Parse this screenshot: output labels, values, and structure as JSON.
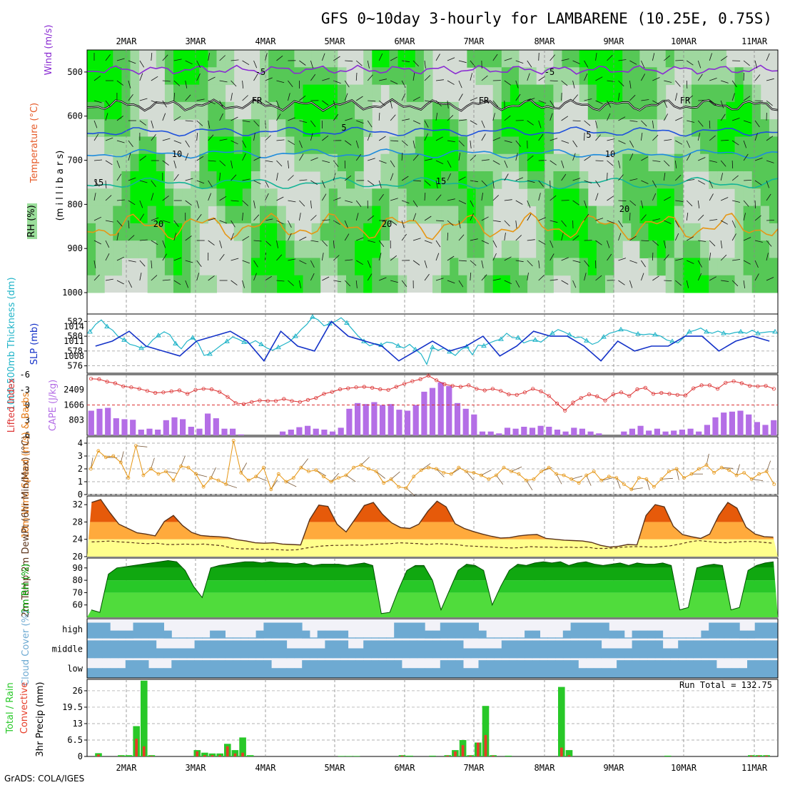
{
  "title": "GFS 0~10day 3-hourly for LAMBARENE (10.25E, 0.75S)",
  "footer": "GrADS: COLA/IGES",
  "dates": [
    "2MAR",
    "3MAR",
    "4MAR",
    "5MAR",
    "6MAR",
    "7MAR",
    "8MAR",
    "9MAR",
    "10MAR",
    "11MAR"
  ],
  "colors": {
    "rh_light": "#9fd89f",
    "rh_mid": "#56c856",
    "rh_high": "#00ee00",
    "rh_bg": "#d4dcd4",
    "slp": "#1432c8",
    "thk": "#20b4c8",
    "lift": "#dc3232",
    "cape": "#b46ee6",
    "wind": "#e69614",
    "temp_hi": "#e65a0a",
    "temp_mid": "#ffaa3c",
    "temp_lo": "#ffff8c",
    "rh2": "#00a000",
    "cloud": "#6eaad2",
    "cloud_bg": "#e6e6e6",
    "precip": "#28c828",
    "conv": "#e63c28"
  },
  "chart_data": [
    {
      "type": "heatmap",
      "panel": "vertical",
      "ylabels": [
        "Wind (m/s)",
        "Temperature (°C)",
        "RH (%)",
        "(m i l l i b a r s)"
      ],
      "yticks": [
        500,
        600,
        700,
        800,
        900,
        1000
      ],
      "ylim": [
        1000,
        450
      ],
      "contour_labels": [
        "-5",
        "FR",
        "5",
        "10",
        "15",
        "20"
      ]
    },
    {
      "type": "line",
      "panel": "slp_thickness",
      "ylabel_left": "1000-500mb Thickness (dm)",
      "ylabel_right": "SLP (mb)",
      "yticks_left": [
        576,
        578,
        580,
        582
      ],
      "yticks_right": [
        1008,
        1011,
        1014
      ],
      "series": [
        {
          "name": "SLP (mb)",
          "values": [
            1010,
            1009,
            1012,
            1011,
            1007,
            1008,
            1013,
            1009,
            1010,
            1010,
            1012,
            1008,
            1009,
            1013,
            1010,
            1008,
            1012,
            1013,
            1011,
            1009,
            1010,
            1012,
            1011,
            1009,
            1013,
            1010,
            1009,
            1011,
            1013,
            1010,
            1007,
            1012,
            1008,
            1013,
            1011,
            1008,
            1010,
            1014,
            1010,
            1009,
            1012,
            1010,
            1015,
            1009,
            1011,
            1012,
            1008,
            1013,
            1011,
            1010,
            1012,
            1010,
            1011,
            1013,
            1007,
            1010,
            1011,
            1009,
            1012,
            1010,
            1011,
            1013,
            1012,
            1009,
            1011,
            1012,
            1010,
            1007,
            1010,
            1012,
            1011,
            1012,
            1008,
            1012,
            1011,
            1010,
            1012,
            1011,
            1013,
            1010,
            1009,
            1012,
            1009,
            1011,
            1012,
            1011,
            1013,
            1010,
            1012,
            1009,
            1007,
            1010,
            1012,
            1011,
            1013,
            1010,
            1009,
            1012,
            1011,
            1010,
            1008,
            1011,
            1010,
            1011,
            1010,
            1012,
            1010,
            1011,
            1012,
            1010,
            1013,
            1009,
            1010,
            1012,
            1011,
            1009,
            1010,
            1012,
            1011,
            1009,
            1011
          ]
        },
        {
          "name": "1000-500mb Thickness (dm)",
          "values": [
            580.6,
            581.6,
            582.2,
            581.3,
            580.8,
            579.9,
            579.5,
            578.9,
            578.7,
            578.4,
            578.6,
            579.5,
            580.1,
            580.6,
            580.2,
            579.0,
            578.3,
            579.3,
            579.8,
            579.0,
            577.4,
            577.6,
            578.2,
            578.8,
            579.3,
            579.9,
            579.6,
            579.2,
            579.0,
            579.4,
            578.9,
            578.4,
            578.1,
            578.5,
            578.9,
            579.3,
            580.0,
            580.9,
            581.6,
            582.6,
            582.2,
            581.4,
            581.7,
            582.0,
            582.5,
            581.8,
            580.9,
            580.0,
            579.3,
            578.7,
            579.0,
            578.8,
            579.2,
            579.1,
            578.7,
            578.4,
            578.9,
            578.2,
            577.6,
            576.2,
            578.5,
            578.1,
            578.4,
            577.9,
            577.4,
            578.2,
            578.6,
            577.5,
            578.8,
            578.7,
            579.1,
            579.4,
            579.6,
            580.4,
            579.8,
            579.8,
            579.1,
            579.4,
            579.5,
            579.2,
            579.8,
            580.4,
            580.9,
            580.6,
            580.2,
            579.8,
            579.9,
            579.4,
            578.9,
            579.2,
            579.9,
            580.4,
            580.6,
            580.9,
            580.8,
            580.5,
            580.3,
            580.2,
            580.3,
            580.2,
            580.0,
            579.5,
            579.3,
            579.1,
            579.8,
            580.6,
            580.8,
            581.1,
            580.6,
            580.4,
            580.7,
            580.4,
            580.3,
            580.5,
            580.6,
            580.4,
            580.8,
            580.4,
            580.5,
            580.6,
            580.6
          ]
        }
      ]
    },
    {
      "type": "bar",
      "panel": "cape_lifted",
      "ylabel_left": "Lifted Index",
      "ylabel_right": "CAPE (J/kg)",
      "yticks_left": [
        -6,
        -3,
        0,
        3,
        6
      ],
      "yticks_right": [
        803,
        1606,
        2409
      ],
      "series": [
        {
          "name": "CAPE (J/kg)",
          "values": [
            1300,
            1400,
            1450,
            900,
            850,
            820,
            300,
            350,
            300,
            800,
            950,
            850,
            450,
            350,
            1150,
            900,
            350,
            350,
            50,
            0,
            0,
            0,
            0,
            200,
            300,
            430,
            500,
            350,
            300,
            200,
            400,
            1400,
            1700,
            1650,
            1750,
            1600,
            1650,
            1350,
            1300,
            1600,
            2300,
            2500,
            2800,
            2600,
            1700,
            1400,
            1100,
            200,
            200,
            100,
            400,
            350,
            450,
            400,
            500,
            450,
            300,
            200,
            400,
            350,
            200,
            100,
            0,
            0,
            200,
            350,
            500,
            250,
            350,
            200,
            250,
            300,
            350,
            200,
            550,
            950,
            1200,
            1250,
            1300,
            1100,
            700,
            550,
            800
          ]
        },
        {
          "name": "Lifted Index",
          "values": [
            -5.2,
            -5.1,
            -4.6,
            -4.3,
            -3.7,
            -3.5,
            -3.2,
            -2.8,
            -2.4,
            -2.5,
            -2.7,
            -2.9,
            -2.2,
            -3,
            -3.2,
            -3.1,
            -2.6,
            -1.6,
            -0.4,
            -0.2,
            -0.6,
            -0.9,
            -0.8,
            -0.8,
            -1.2,
            -0.8,
            -0.6,
            -1,
            -1.4,
            -2.2,
            -2.6,
            -3.1,
            -3.3,
            -3.5,
            -3.6,
            -3.4,
            -3.1,
            -3,
            -3.6,
            -4.2,
            -4.7,
            -5.1,
            -5.8,
            -4.9,
            -4.1,
            -3.8,
            -3.6,
            -3.9,
            -3.2,
            -2.9,
            -3.2,
            -2.8,
            -2.1,
            -2,
            -2.5,
            -3.2,
            -2.7,
            -1.8,
            -0.3,
            1.1,
            -0.5,
            -1.4,
            -2.1,
            -1.7,
            -0.9,
            -2.1,
            -2.5,
            -1.8,
            -3.1,
            -3.4,
            -2.2,
            -2.4,
            -2.2,
            -2,
            -1.9,
            -3.3,
            -3.9,
            -3.9,
            -3.2,
            -4.4,
            -4.7,
            -4.3,
            -3.8,
            -3.7,
            -3.8,
            -3.2
          ]
        }
      ]
    },
    {
      "type": "line",
      "panel": "wind10m",
      "ylabel": "10m Wind Speed (m/s) & Barbs",
      "yticks": [
        0,
        1,
        2,
        3,
        4
      ],
      "values": [
        2.0,
        3.4,
        2.9,
        3.0,
        2.5,
        1.3,
        3.8,
        1.5,
        2.0,
        1.6,
        1.8,
        1.1,
        2.2,
        2.1,
        1.6,
        0.6,
        1.3,
        1.1,
        0.8,
        4.2,
        1.7,
        1.1,
        1.4,
        2.1,
        0.4,
        1.6,
        1.0,
        1.3,
        2.1,
        1.8,
        1.9,
        1.4,
        1.0,
        1.3,
        1.5,
        2.1,
        2.3,
        2.0,
        1.8,
        0.9,
        1.2,
        0.6,
        0.5,
        1.4,
        1.9,
        2.1,
        2.0,
        1.7,
        1.6,
        2.1,
        1.8,
        1.7,
        1.5,
        1.2,
        1.5,
        2.1,
        1.8,
        1.6,
        1.1,
        1.2,
        1.8,
        2.1,
        1.6,
        1.5,
        1.2,
        0.9,
        1.5,
        1.8,
        1.1,
        1.4,
        1.3,
        0.8,
        0.4,
        1.3,
        1.2,
        0.6,
        1.2,
        1.8,
        2.0,
        1.3,
        1.6,
        2.0,
        2.3,
        1.7,
        2.1,
        1.9,
        1.5,
        1.7,
        1.2,
        1.6,
        1.8,
        0.8
      ]
    },
    {
      "type": "area",
      "panel": "temp2m",
      "ylabel": "2m Temp 2m DewPt (6hr Min/Max) (°C)",
      "yticks": [
        20,
        24,
        28,
        32
      ],
      "series": [
        {
          "name": "2m Temp",
          "values": [
            32.5,
            33.2,
            30.2,
            27.5,
            26.5,
            25.5,
            25.2,
            24.8,
            28.1,
            29.5,
            27.2,
            25.6,
            24.9,
            24.7,
            24.6,
            24.4,
            23.9,
            23.6,
            23.2,
            23.1,
            23.2,
            22.9,
            22.8,
            22.7,
            28.6,
            31.9,
            31.6,
            27.5,
            25.7,
            28.7,
            31.8,
            32.5,
            29.8,
            27.8,
            26.7,
            26.5,
            27.5,
            30.5,
            32.8,
            31.5,
            27.6,
            26.5,
            25.8,
            25.2,
            24.7,
            24.3,
            24.4,
            24.8,
            25.0,
            25.1,
            24.2,
            24.0,
            23.8,
            23.7,
            23.6,
            23.3,
            22.6,
            22.2,
            22.4,
            22.8,
            22.7,
            29.5,
            32.0,
            31.5,
            27.0,
            25.1,
            24.6,
            24.2,
            25.2,
            29.5,
            32.5,
            31.2,
            26.8,
            25.2,
            24.6,
            24.5
          ]
        },
        {
          "name": "2m DewPt",
          "values": [
            23.4,
            23.5,
            23.6,
            23.4,
            23.3,
            23.1,
            23.0,
            23.1,
            22.8,
            22.8,
            22.9,
            22.8,
            22.9,
            22.7,
            22.5,
            22.0,
            21.8,
            21.8,
            21.7,
            21.7,
            21.6,
            21.5,
            21.6,
            22.0,
            22.3,
            22.5,
            22.6,
            22.6,
            22.7,
            22.6,
            22.8,
            22.9,
            23.0,
            23.2,
            23.1,
            23.0,
            22.8,
            23.0,
            22.9,
            22.8,
            22.5,
            22.4,
            22.3,
            22.2,
            22.1,
            22.0,
            22.1,
            22.3,
            22.2,
            22.2,
            22.1,
            22.2,
            22.1,
            22.2,
            21.9,
            21.9,
            22.0,
            22.2,
            22.3,
            22.3,
            22.2,
            22.3,
            22.5,
            22.9,
            23.4,
            23.7,
            23.5,
            23.3,
            23.2,
            23.4,
            23.5,
            23.5,
            23.3,
            23.1
          ]
        }
      ]
    },
    {
      "type": "area",
      "panel": "rh2m",
      "ylabel": "2m RH (%)",
      "yticks": [
        60,
        70,
        80,
        90
      ],
      "values": [
        56,
        54,
        85,
        90,
        91,
        92,
        93,
        94,
        95,
        96,
        95,
        88,
        75,
        66,
        90,
        92,
        93,
        94,
        95,
        95,
        94,
        95,
        94,
        94,
        93,
        94,
        92,
        93,
        93,
        93,
        92,
        93,
        94,
        92,
        53,
        54,
        72,
        88,
        92,
        92,
        80,
        56,
        72,
        88,
        93,
        92,
        88,
        60,
        75,
        88,
        93,
        92,
        94,
        95,
        94,
        95,
        92,
        94,
        95,
        93,
        92,
        93,
        94,
        92,
        94,
        93,
        93,
        94,
        92,
        56,
        58,
        90,
        92,
        93,
        92,
        56,
        58,
        88,
        92,
        94,
        95
      ]
    },
    {
      "type": "heatmap",
      "panel": "cloud",
      "ylabel": "Cloud Cover (%)",
      "rows": [
        "high",
        "middle",
        "low"
      ]
    },
    {
      "type": "bar",
      "panel": "precip",
      "ylabel": "3hr Precip (mm)",
      "legend": [
        "Total / Rain",
        "Convective"
      ],
      "yticks": [
        0,
        6.5,
        13,
        19.5,
        26
      ],
      "run_total": "Run Total = 132.75",
      "series": [
        {
          "name": "Total / Rain",
          "values": [
            0,
            1.3,
            0,
            0,
            0.5,
            0.5,
            12,
            30,
            0.5,
            0,
            0,
            0,
            0,
            0,
            2.5,
            1.5,
            1.2,
            1.2,
            5,
            2.5,
            7.5,
            0.5,
            0,
            0,
            0,
            0,
            0,
            0,
            0,
            0,
            0,
            0,
            0,
            0.2,
            0.2,
            0.2,
            0,
            0,
            0,
            0,
            0,
            0.5,
            0.3,
            0,
            0,
            0.3,
            0,
            0.5,
            2.5,
            6.5,
            0.5,
            5.5,
            20,
            0.5,
            0,
            0.3,
            0,
            0,
            0,
            0,
            0,
            0,
            27.5,
            2.5,
            0,
            0,
            0,
            0,
            0,
            0,
            0,
            0,
            0,
            0,
            0,
            0,
            0.3,
            0,
            0,
            0,
            0,
            0,
            0,
            0,
            0,
            0,
            0,
            0.5,
            0.5,
            0.5,
            0
          ]
        },
        {
          "name": "Convective",
          "values": [
            0,
            0.8,
            0,
            0,
            0.1,
            0,
            7,
            4,
            0.2,
            0,
            0,
            0,
            0,
            0,
            2.0,
            0.5,
            0.5,
            0.5,
            4,
            1.2,
            1.5,
            0,
            0,
            0,
            0,
            0,
            0,
            0,
            0,
            0,
            0,
            0,
            0,
            0,
            0,
            0,
            0,
            0,
            0,
            0,
            0,
            0.3,
            0,
            0,
            0,
            0,
            0,
            0.3,
            2,
            4.5,
            0.3,
            5.5,
            8.5,
            0.3,
            0,
            0,
            0,
            0,
            0,
            0,
            0,
            0,
            3.5,
            0.5,
            0,
            0,
            0,
            0,
            0,
            0,
            0,
            0,
            0,
            0,
            0,
            0,
            0,
            0,
            0,
            0,
            0,
            0,
            0,
            0,
            0,
            0,
            0,
            0.3,
            0.3,
            0.3,
            0
          ]
        }
      ]
    }
  ]
}
